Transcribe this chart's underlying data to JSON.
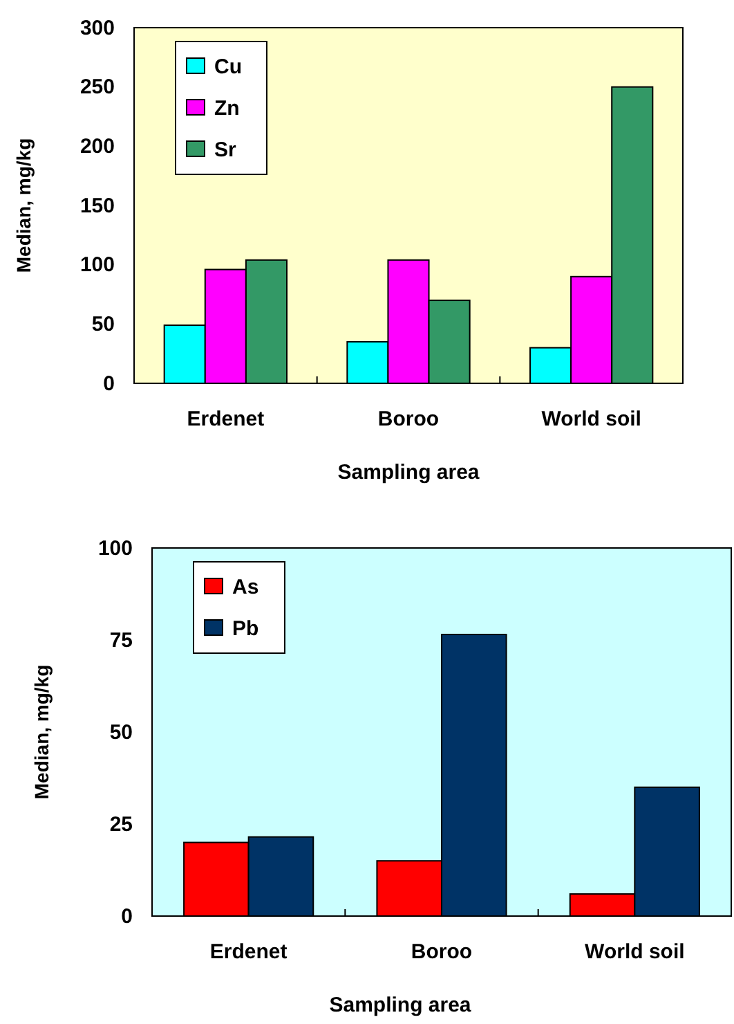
{
  "chart_data": [
    {
      "type": "bar",
      "xlabel": "Sampling area",
      "ylabel": "Median, mg/kg",
      "categories": [
        "Erdenet",
        "Boroo",
        "World soil"
      ],
      "series": [
        {
          "name": "Cu",
          "color": "#00ffff",
          "values": [
            49,
            35,
            30
          ]
        },
        {
          "name": "Zn",
          "color": "#ff00ff",
          "values": [
            96,
            104,
            90
          ]
        },
        {
          "name": "Sr",
          "color": "#339966",
          "values": [
            104,
            70,
            250
          ]
        }
      ],
      "ylim": [
        0,
        300
      ],
      "yticks": [
        0,
        50,
        100,
        150,
        200,
        250,
        300
      ],
      "legend": "top left",
      "grid": false
    },
    {
      "type": "bar",
      "xlabel": "Sampling area",
      "ylabel": "Median, mg/kg",
      "categories": [
        "Erdenet",
        "Boroo",
        "World soil"
      ],
      "series": [
        {
          "name": "As",
          "color": "#ff0000",
          "values": [
            20,
            15,
            6
          ]
        },
        {
          "name": "Pb",
          "color": "#003366",
          "values": [
            21.5,
            76.5,
            35
          ]
        }
      ],
      "ylim": [
        0,
        100
      ],
      "yticks": [
        0,
        25,
        50,
        75,
        100
      ],
      "legend": "top left",
      "grid": false
    }
  ]
}
